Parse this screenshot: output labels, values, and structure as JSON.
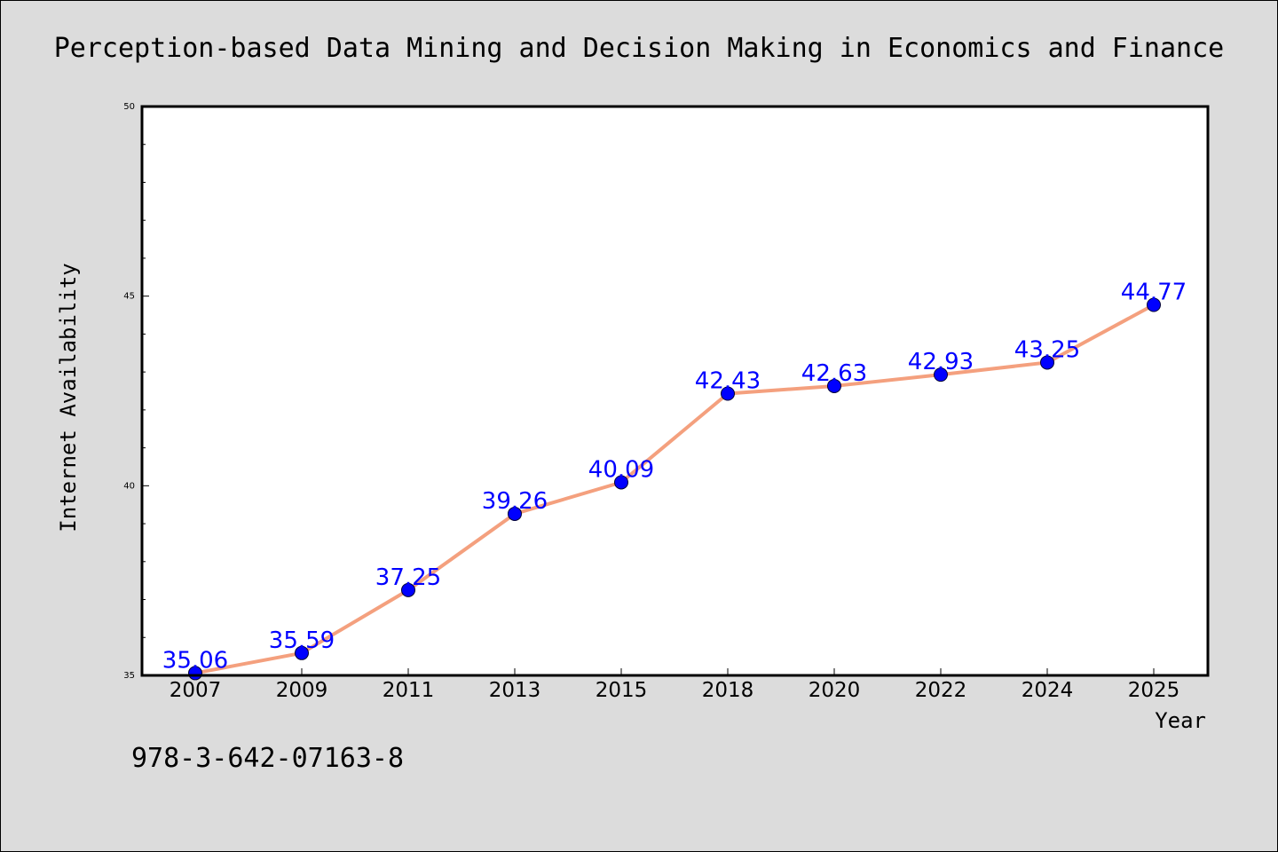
{
  "chart_data": {
    "type": "line",
    "title": "Perception-based Data Mining and Decision Making in Economics and Finance",
    "xlabel": "Year",
    "ylabel": "Internet Availability",
    "categories": [
      "2007",
      "2009",
      "2011",
      "2013",
      "2015",
      "2018",
      "2020",
      "2022",
      "2024",
      "2025"
    ],
    "series": [
      {
        "values": [
          35.06,
          35.59,
          37.25,
          39.26,
          40.09,
          42.43,
          42.63,
          42.93,
          43.25,
          44.77
        ],
        "data_labels": [
          "35.06",
          "35.59",
          "37.25",
          "39.26",
          "40.09",
          "42.43",
          "42.63",
          "42.93",
          "43.25",
          "44.77"
        ]
      }
    ],
    "ylim": [
      35,
      50
    ],
    "y_ticks": [
      "35",
      "40",
      "45",
      "50"
    ],
    "grid": false,
    "colors": {
      "background": "#dcdcdc",
      "plot_background": "#ffffff",
      "line": "#f4a07e",
      "marker": "#0000ff",
      "data_label": "#0000ff"
    }
  },
  "footnote": "978-3-642-07163-8"
}
